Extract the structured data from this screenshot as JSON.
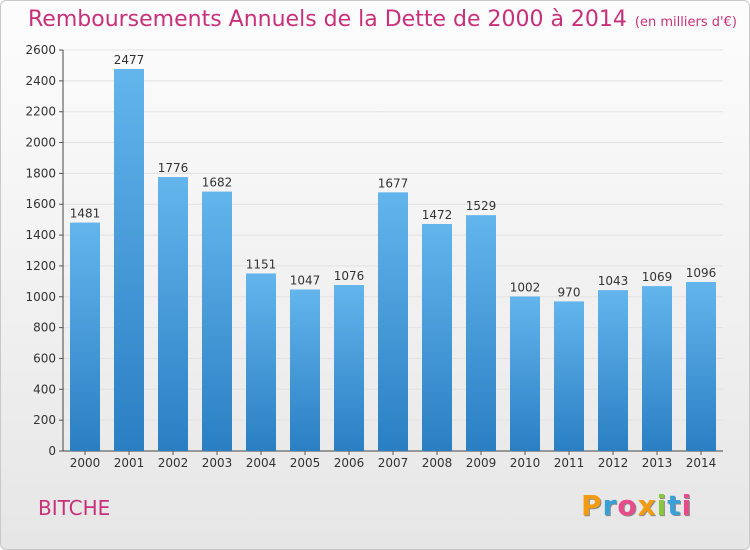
{
  "header": {
    "title": "Remboursements Annuels de la Dette de 2000 à 2014",
    "unit": "(en milliers d'€)"
  },
  "footer": {
    "commune": "BITCHE",
    "logo_text": "Proxiti",
    "logo_colors": [
      "#f39c12",
      "#3aa0d8",
      "#e84b8a",
      "#f39c12",
      "#8cc63f",
      "#3aa0d8",
      "#e84b8a"
    ]
  },
  "colors": {
    "title": "#c8307a",
    "bar_top": "#63b5ec",
    "bar_bottom": "#2a7fc3",
    "grid": "#e2e2e2"
  },
  "chart_data": {
    "type": "bar",
    "title": "Remboursements Annuels de la Dette de 2000 à 2014",
    "categories": [
      "2000",
      "2001",
      "2002",
      "2003",
      "2004",
      "2005",
      "2006",
      "2007",
      "2008",
      "2009",
      "2010",
      "2011",
      "2012",
      "2013",
      "2014"
    ],
    "values": [
      1481,
      2477,
      1776,
      1682,
      1151,
      1047,
      1076,
      1677,
      1472,
      1529,
      1002,
      970,
      1043,
      1069,
      1096
    ],
    "ylim": [
      0,
      2600
    ],
    "yticks": [
      0,
      200,
      400,
      600,
      800,
      1000,
      1200,
      1400,
      1600,
      1800,
      2000,
      2200,
      2400,
      2600
    ],
    "grid": true,
    "legend": "none"
  }
}
